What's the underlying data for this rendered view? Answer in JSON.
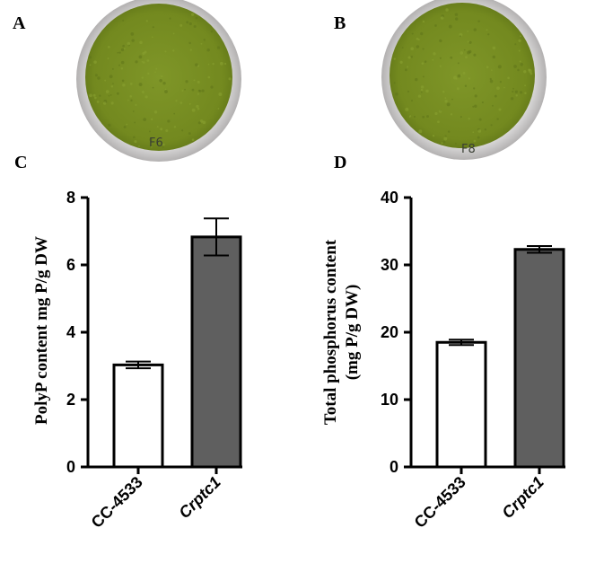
{
  "panels": {
    "a": "A",
    "b": "B",
    "c": "C",
    "d": "D"
  },
  "photos": {
    "left_label": "F6",
    "right_label": "F8",
    "colors": {
      "rim": "#d4d3d3",
      "rim_edge": "#b9b7b7",
      "algae": "#7b9126",
      "algae_dark": "#5e7419"
    }
  },
  "colors": {
    "bar_control": "#ffffff",
    "bar_mutant": "#5f5f5f",
    "axis": "#000000"
  },
  "chart_data": [
    {
      "type": "bar",
      "panel": "C",
      "categories": [
        "CC-4533",
        "Crptc1"
      ],
      "values": [
        3.03,
        6.83
      ],
      "errors": [
        0.1,
        0.55
      ],
      "ylabel": "PolyP content mg P/g DW",
      "ylim": [
        0,
        8
      ],
      "yticks": [
        0,
        2,
        4,
        6,
        8
      ],
      "grid": false
    },
    {
      "type": "bar",
      "panel": "D",
      "categories": [
        "CC-4533",
        "Crptc1"
      ],
      "values": [
        18.5,
        32.3
      ],
      "errors": [
        0.4,
        0.5
      ],
      "ylabel_line1": "Total phosphorus content",
      "ylabel_line2": "(mg P/g DW)",
      "ylim": [
        0,
        40
      ],
      "yticks": [
        0,
        10,
        20,
        30,
        40
      ],
      "grid": false
    }
  ]
}
